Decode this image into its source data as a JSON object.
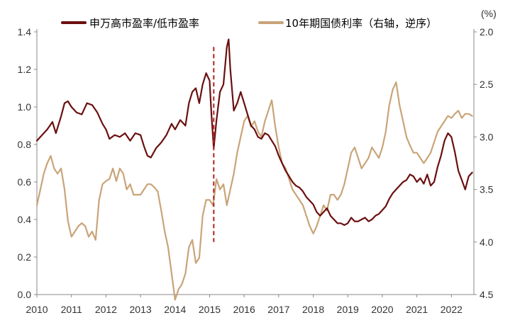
{
  "chart_data": {
    "type": "line",
    "title": "",
    "legend": {
      "placement": "top",
      "entries": [
        {
          "name": "申万高市盈率/低市盈率",
          "color": "#6b0f0f",
          "axis": "left"
        },
        {
          "name": "10年期国债利率（右轴，逆序）",
          "color": "#c9a478",
          "axis": "right"
        }
      ]
    },
    "right_axis_unit": "(%)",
    "x_axis": {
      "range": [
        2010.0,
        2022.65
      ],
      "tick_values": [
        2010,
        2011,
        2012,
        2013,
        2014,
        2015,
        2016,
        2017,
        2018,
        2019,
        2020,
        2021,
        2022
      ],
      "tick_labels": [
        "2010",
        "2011",
        "2012",
        "2013",
        "2014",
        "2015",
        "2016",
        "2017",
        "2018",
        "2019",
        "2020",
        "2021",
        "2022"
      ]
    },
    "y_left": {
      "range": [
        0.0,
        1.4
      ],
      "tick_values": [
        0.0,
        0.2,
        0.4,
        0.6,
        0.8,
        1.0,
        1.2,
        1.4
      ],
      "tick_labels": [
        "0.0",
        "0.2",
        "0.4",
        "0.6",
        "0.8",
        "1.0",
        "1.2",
        "1.4"
      ]
    },
    "y_right": {
      "range": [
        2.0,
        4.5
      ],
      "inverted": true,
      "tick_values": [
        2.0,
        2.5,
        3.0,
        3.5,
        4.0,
        4.5
      ],
      "tick_labels": [
        "2.0",
        "2.5",
        "3.0",
        "3.5",
        "4.0",
        "4.5"
      ]
    },
    "vertical_marker": {
      "x": 2015.12,
      "y_from": 0.28,
      "y_to": 1.32,
      "color": "#b22222",
      "style": "dashed"
    },
    "series": [
      {
        "name": "申万高市盈率/低市盈率",
        "axis": "left",
        "color": "#6b0f0f",
        "x": [
          2010.0,
          2010.15,
          2010.3,
          2010.45,
          2010.55,
          2010.7,
          2010.8,
          2010.9,
          2011.0,
          2011.15,
          2011.3,
          2011.45,
          2011.6,
          2011.75,
          2011.9,
          2012.0,
          2012.1,
          2012.25,
          2012.4,
          2012.55,
          2012.7,
          2012.85,
          2013.0,
          2013.1,
          2013.2,
          2013.3,
          2013.45,
          2013.6,
          2013.75,
          2013.9,
          2014.0,
          2014.15,
          2014.3,
          2014.4,
          2014.5,
          2014.6,
          2014.7,
          2014.8,
          2014.9,
          2015.0,
          2015.05,
          2015.12,
          2015.2,
          2015.3,
          2015.4,
          2015.5,
          2015.55,
          2015.6,
          2015.7,
          2015.8,
          2015.9,
          2016.0,
          2016.1,
          2016.2,
          2016.3,
          2016.4,
          2016.5,
          2016.6,
          2016.7,
          2016.8,
          2016.9,
          2017.0,
          2017.1,
          2017.2,
          2017.3,
          2017.4,
          2017.5,
          2017.6,
          2017.7,
          2017.8,
          2017.9,
          2018.0,
          2018.1,
          2018.2,
          2018.3,
          2018.4,
          2018.5,
          2018.6,
          2018.7,
          2018.8,
          2018.9,
          2019.0,
          2019.1,
          2019.2,
          2019.3,
          2019.4,
          2019.5,
          2019.6,
          2019.7,
          2019.8,
          2019.9,
          2020.0,
          2020.1,
          2020.2,
          2020.3,
          2020.4,
          2020.5,
          2020.6,
          2020.7,
          2020.8,
          2020.9,
          2021.0,
          2021.1,
          2021.2,
          2021.3,
          2021.4,
          2021.5,
          2021.6,
          2021.7,
          2021.8,
          2021.9,
          2022.0,
          2022.1,
          2022.2,
          2022.3,
          2022.4,
          2022.5,
          2022.6
        ],
        "y": [
          0.82,
          0.85,
          0.88,
          0.92,
          0.86,
          0.95,
          1.02,
          1.03,
          1.0,
          0.97,
          0.96,
          1.02,
          1.01,
          0.97,
          0.91,
          0.88,
          0.83,
          0.85,
          0.84,
          0.86,
          0.82,
          0.86,
          0.85,
          0.79,
          0.74,
          0.73,
          0.78,
          0.81,
          0.85,
          0.91,
          0.88,
          0.93,
          0.9,
          1.02,
          1.08,
          1.1,
          1.02,
          1.12,
          1.18,
          1.14,
          0.97,
          0.78,
          0.93,
          1.08,
          1.12,
          1.32,
          1.36,
          1.2,
          0.98,
          1.02,
          1.08,
          1.02,
          0.96,
          0.9,
          0.88,
          0.84,
          0.83,
          0.86,
          0.85,
          0.82,
          0.79,
          0.74,
          0.7,
          0.66,
          0.63,
          0.6,
          0.58,
          0.57,
          0.55,
          0.52,
          0.5,
          0.48,
          0.44,
          0.42,
          0.44,
          0.46,
          0.42,
          0.4,
          0.38,
          0.38,
          0.37,
          0.38,
          0.41,
          0.39,
          0.39,
          0.4,
          0.41,
          0.39,
          0.4,
          0.42,
          0.43,
          0.45,
          0.47,
          0.51,
          0.54,
          0.56,
          0.58,
          0.6,
          0.61,
          0.64,
          0.63,
          0.6,
          0.62,
          0.59,
          0.64,
          0.58,
          0.6,
          0.68,
          0.74,
          0.82,
          0.86,
          0.84,
          0.76,
          0.66,
          0.61,
          0.56,
          0.63,
          0.65
        ]
      },
      {
        "name": "10年期国债利率（右轴，逆序）",
        "axis": "right",
        "color": "#c9a478",
        "x": [
          2010.0,
          2010.1,
          2010.2,
          2010.3,
          2010.4,
          2010.5,
          2010.6,
          2010.7,
          2010.8,
          2010.9,
          2011.0,
          2011.1,
          2011.2,
          2011.3,
          2011.4,
          2011.5,
          2011.6,
          2011.7,
          2011.8,
          2011.9,
          2012.0,
          2012.1,
          2012.2,
          2012.3,
          2012.4,
          2012.5,
          2012.6,
          2012.7,
          2012.8,
          2012.9,
          2013.0,
          2013.1,
          2013.2,
          2013.3,
          2013.4,
          2013.5,
          2013.6,
          2013.7,
          2013.8,
          2013.9,
          2014.0,
          2014.1,
          2014.2,
          2014.3,
          2014.4,
          2014.5,
          2014.6,
          2014.7,
          2014.8,
          2014.9,
          2015.0,
          2015.1,
          2015.2,
          2015.3,
          2015.4,
          2015.5,
          2015.6,
          2015.7,
          2015.8,
          2015.9,
          2016.0,
          2016.1,
          2016.2,
          2016.3,
          2016.4,
          2016.5,
          2016.6,
          2016.7,
          2016.8,
          2016.9,
          2017.0,
          2017.1,
          2017.2,
          2017.3,
          2017.4,
          2017.5,
          2017.6,
          2017.7,
          2017.8,
          2017.9,
          2018.0,
          2018.1,
          2018.2,
          2018.3,
          2018.4,
          2018.5,
          2018.6,
          2018.7,
          2018.8,
          2018.9,
          2019.0,
          2019.1,
          2019.2,
          2019.3,
          2019.4,
          2019.5,
          2019.6,
          2019.7,
          2019.8,
          2019.9,
          2020.0,
          2020.1,
          2020.2,
          2020.3,
          2020.4,
          2020.5,
          2020.6,
          2020.7,
          2020.8,
          2020.9,
          2021.0,
          2021.1,
          2021.2,
          2021.3,
          2021.4,
          2021.5,
          2021.6,
          2021.7,
          2021.8,
          2021.9,
          2022.0,
          2022.1,
          2022.2,
          2022.3,
          2022.4,
          2022.5,
          2022.6
        ],
        "y": [
          3.65,
          3.5,
          3.35,
          3.25,
          3.18,
          3.3,
          3.35,
          3.3,
          3.5,
          3.8,
          3.95,
          3.9,
          3.85,
          3.82,
          3.85,
          3.95,
          3.9,
          3.98,
          3.6,
          3.45,
          3.42,
          3.4,
          3.3,
          3.42,
          3.3,
          3.35,
          3.5,
          3.45,
          3.55,
          3.55,
          3.55,
          3.5,
          3.45,
          3.45,
          3.48,
          3.52,
          3.7,
          3.9,
          4.05,
          4.3,
          4.55,
          4.45,
          4.4,
          4.3,
          4.05,
          3.98,
          4.2,
          4.15,
          3.75,
          3.6,
          3.6,
          3.65,
          3.4,
          3.5,
          3.45,
          3.65,
          3.5,
          3.35,
          3.15,
          3.0,
          2.85,
          2.8,
          2.9,
          2.85,
          2.95,
          3.0,
          2.85,
          2.75,
          2.65,
          2.9,
          3.1,
          3.25,
          3.3,
          3.4,
          3.5,
          3.55,
          3.6,
          3.65,
          3.75,
          3.85,
          3.92,
          3.85,
          3.75,
          3.65,
          3.7,
          3.55,
          3.55,
          3.6,
          3.55,
          3.45,
          3.3,
          3.15,
          3.1,
          3.2,
          3.3,
          3.25,
          3.2,
          3.1,
          3.15,
          3.2,
          3.1,
          2.95,
          2.7,
          2.55,
          2.48,
          2.7,
          2.85,
          3.0,
          3.08,
          3.15,
          3.15,
          3.2,
          3.25,
          3.2,
          3.15,
          3.05,
          2.95,
          2.9,
          2.85,
          2.8,
          2.82,
          2.78,
          2.75,
          2.82,
          2.78,
          2.78,
          2.8
        ]
      }
    ]
  }
}
